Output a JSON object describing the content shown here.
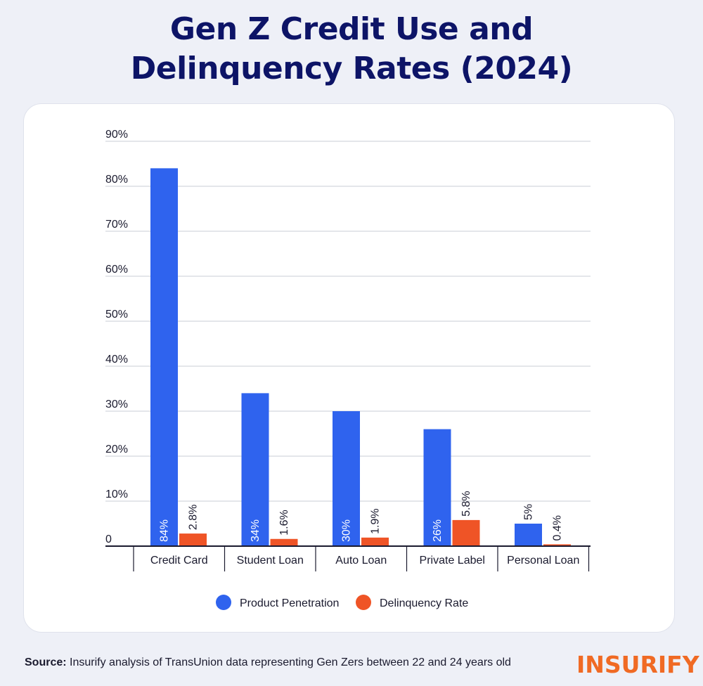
{
  "title_line1": "Gen Z Credit Use and",
  "title_line2": "Delinquency Rates (2024)",
  "chart_data": {
    "type": "bar",
    "categories": [
      "Credit Card",
      "Student Loan",
      "Auto Loan",
      "Private Label",
      "Personal Loan"
    ],
    "series": [
      {
        "name": "Product Penetration",
        "color": "#2f63ee",
        "values": [
          84,
          34,
          30,
          26,
          5
        ],
        "labels": [
          "84%",
          "34%",
          "30%",
          "26%",
          "5%"
        ]
      },
      {
        "name": "Delinquency Rate",
        "color": "#ef5426",
        "values": [
          2.8,
          1.6,
          1.9,
          5.8,
          0.4
        ],
        "labels": [
          "2.8%",
          "1.6%",
          "1.9%",
          "5.8%",
          "0.4%"
        ]
      }
    ],
    "ylim": [
      0,
      90
    ],
    "yticks": [
      0,
      10,
      20,
      30,
      40,
      50,
      60,
      70,
      80,
      90
    ],
    "ytick_labels": [
      "0",
      "10%",
      "20%",
      "30%",
      "40%",
      "50%",
      "60%",
      "70%",
      "80%",
      "90%"
    ],
    "grid": true,
    "legend": "bottom-center"
  },
  "footer": {
    "source_label": "Source:",
    "source_text": " Insurify analysis of TransUnion data representing Gen Zers between 22 and 24 years old"
  },
  "brand": {
    "logo_text": "INSURIFY",
    "color": "#f06a24"
  }
}
